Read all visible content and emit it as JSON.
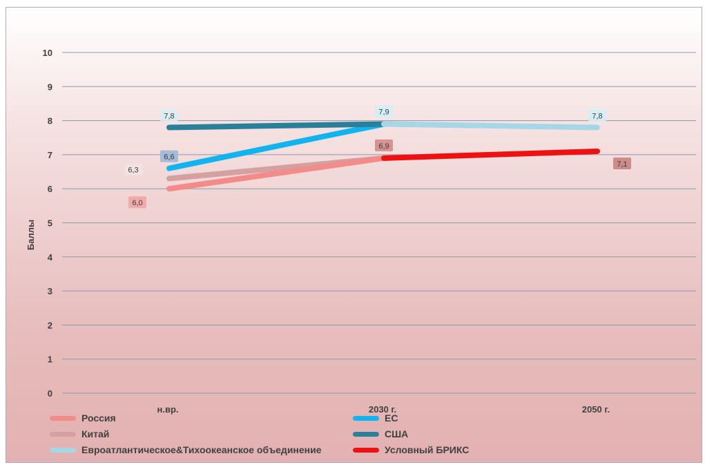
{
  "chart_data": {
    "type": "line",
    "categories": [
      "н.вр.",
      "2030 г.",
      "2050 г."
    ],
    "ylabel": "Баллы",
    "ylim": [
      0,
      10
    ],
    "yticks": [
      "0",
      "1",
      "2",
      "3",
      "4",
      "5",
      "6",
      "7",
      "8",
      "9",
      "10"
    ],
    "grid": true,
    "legend_position": "bottom",
    "series": [
      {
        "name": "Россия",
        "color": "#f38b8b",
        "values": [
          6.0,
          6.9,
          null
        ],
        "labels": [
          "6,0",
          null,
          null
        ]
      },
      {
        "name": "Китай",
        "color": "#d4a0a0",
        "values": [
          6.3,
          6.9,
          null
        ],
        "labels": [
          "6,3",
          "6,9",
          null
        ]
      },
      {
        "name": "ЕС",
        "color": "#12b4ef",
        "values": [
          6.6,
          7.9,
          null
        ],
        "labels": [
          "6,6",
          null,
          null
        ]
      },
      {
        "name": "США",
        "color": "#2a7f9a",
        "values": [
          7.8,
          7.9,
          null
        ],
        "labels": [
          "7,8",
          null,
          null
        ]
      },
      {
        "name": "Евроатлантическое&Тихоокеанское объединение",
        "color": "#a5d7e6",
        "values": [
          null,
          7.9,
          7.8
        ],
        "labels": [
          null,
          "7,9",
          "7,8"
        ]
      },
      {
        "name": "Условный БРИКС",
        "color": "#ee1111",
        "values": [
          null,
          6.9,
          7.1
        ],
        "labels": [
          null,
          null,
          "7,1"
        ]
      }
    ]
  }
}
